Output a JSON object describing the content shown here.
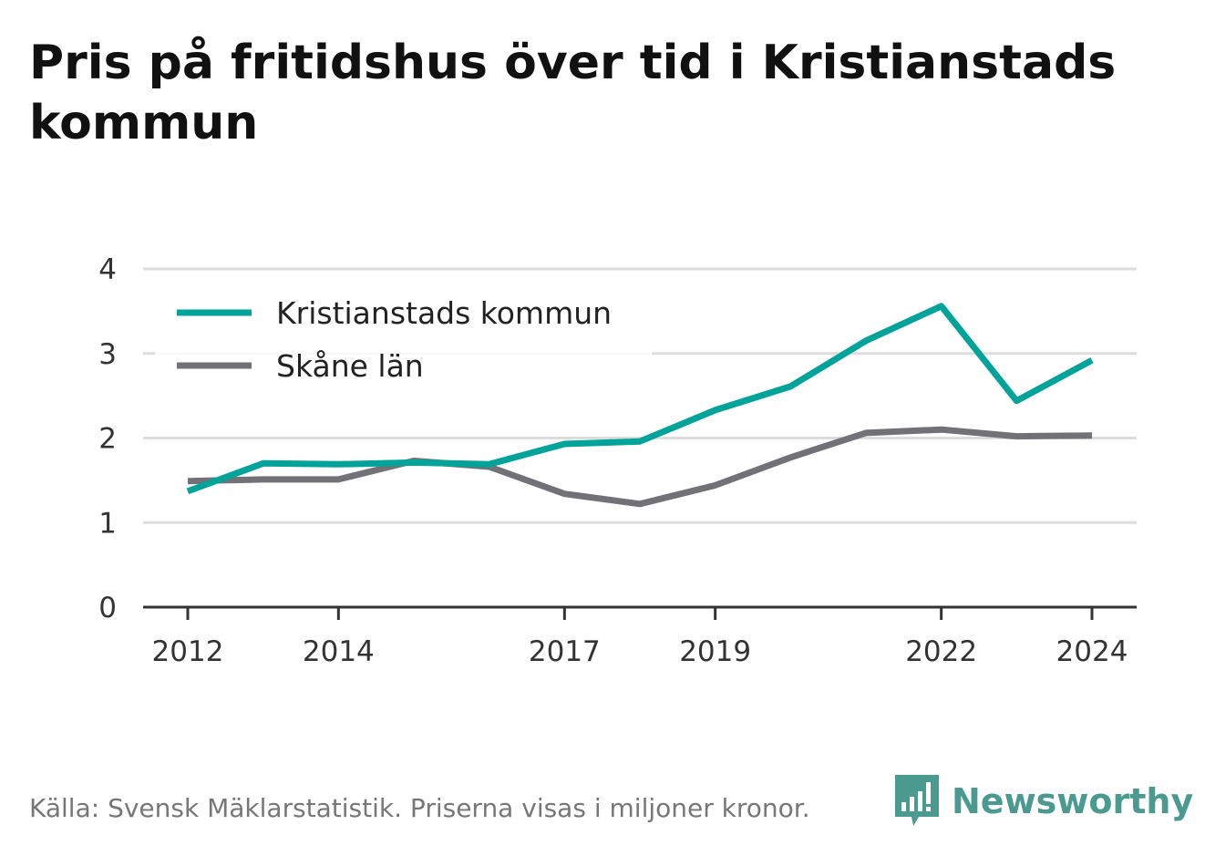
{
  "title": "Pris på fritidshus över tid i Kristianstads kommun",
  "source": "Källa: Svensk Mäklarstatistik. Priserna visas i miljoner kronor.",
  "brand": "Newsworthy",
  "brand_logo_icon": "bar-chart-speech-bubble-icon",
  "colors": {
    "kristianstad": "#00a39a",
    "skane": "#727178",
    "grid": "#dddddd",
    "axis": "#333333",
    "brand": "#4a9a8f"
  },
  "chart_data": {
    "type": "line",
    "title": "Pris på fritidshus över tid i Kristianstads kommun",
    "xlabel": "",
    "ylabel": "",
    "x": [
      2012,
      2013,
      2014,
      2015,
      2016,
      2017,
      2018,
      2019,
      2020,
      2021,
      2022,
      2023,
      2024
    ],
    "x_tick_labels": [
      "2012",
      "2014",
      "2017",
      "2019",
      "2022",
      "2024"
    ],
    "y_ticks": [
      0,
      1,
      2,
      3,
      4
    ],
    "ylim": [
      0,
      4
    ],
    "grid": true,
    "legend_position": "top-left",
    "series": [
      {
        "name": "Kristianstads kommun",
        "color": "#00a39a",
        "values": [
          1.37,
          1.7,
          1.69,
          1.71,
          1.69,
          1.93,
          1.96,
          2.33,
          2.61,
          3.15,
          3.56,
          2.44,
          2.92
        ]
      },
      {
        "name": "Skåne län",
        "color": "#727178",
        "values": [
          1.49,
          1.51,
          1.51,
          1.73,
          1.66,
          1.34,
          1.22,
          1.44,
          1.77,
          2.06,
          2.1,
          2.02,
          2.03
        ]
      }
    ]
  }
}
